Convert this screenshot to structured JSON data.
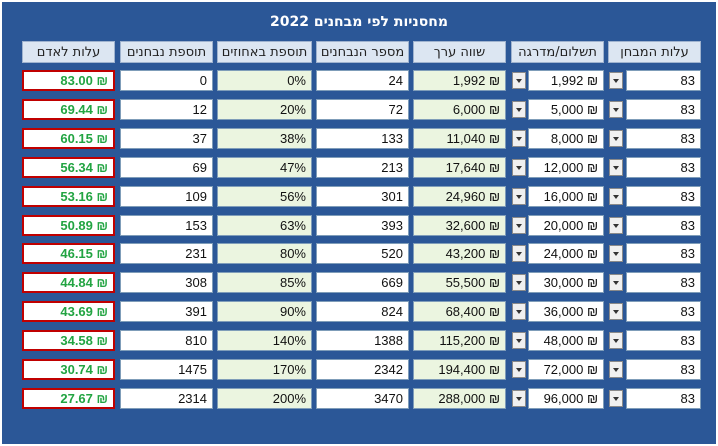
{
  "title": "מחסניות לפי מבחנים 2022",
  "headers": {
    "cost_per_person": "עלות לאדם",
    "examinee_bonus": "תוספת נבחנים",
    "percent_bonus": "תוספת באחוזים",
    "num_examinees": "מספר הנבחנים",
    "value_worth": "שווה ערך",
    "payment_level": "תשלום/מדרגה",
    "exam_cost": "עלות המבחן"
  },
  "rows": [
    {
      "cost": "83.00 ₪",
      "exb": "0",
      "pct": "0%",
      "num": "24",
      "val": "1,992 ₪",
      "pay": "1,992 ₪",
      "exam": "83"
    },
    {
      "cost": "69.44 ₪",
      "exb": "12",
      "pct": "20%",
      "num": "72",
      "val": "6,000 ₪",
      "pay": "5,000 ₪",
      "exam": "83"
    },
    {
      "cost": "60.15 ₪",
      "exb": "37",
      "pct": "38%",
      "num": "133",
      "val": "11,040 ₪",
      "pay": "8,000 ₪",
      "exam": "83"
    },
    {
      "cost": "56.34 ₪",
      "exb": "69",
      "pct": "47%",
      "num": "213",
      "val": "17,640 ₪",
      "pay": "12,000 ₪",
      "exam": "83"
    },
    {
      "cost": "53.16 ₪",
      "exb": "109",
      "pct": "56%",
      "num": "301",
      "val": "24,960 ₪",
      "pay": "16,000 ₪",
      "exam": "83"
    },
    {
      "cost": "50.89 ₪",
      "exb": "153",
      "pct": "63%",
      "num": "393",
      "val": "32,600 ₪",
      "pay": "20,000 ₪",
      "exam": "83"
    },
    {
      "cost": "46.15 ₪",
      "exb": "231",
      "pct": "80%",
      "num": "520",
      "val": "43,200 ₪",
      "pay": "24,000 ₪",
      "exam": "83"
    },
    {
      "cost": "44.84 ₪",
      "exb": "308",
      "pct": "85%",
      "num": "669",
      "val": "55,500 ₪",
      "pay": "30,000 ₪",
      "exam": "83"
    },
    {
      "cost": "43.69 ₪",
      "exb": "391",
      "pct": "90%",
      "num": "824",
      "val": "68,400 ₪",
      "pay": "36,000 ₪",
      "exam": "83"
    },
    {
      "cost": "34.58 ₪",
      "exb": "810",
      "pct": "140%",
      "num": "1388",
      "val": "115,200 ₪",
      "pay": "48,000 ₪",
      "exam": "83"
    },
    {
      "cost": "30.74 ₪",
      "exb": "1475",
      "pct": "170%",
      "num": "2342",
      "val": "194,400 ₪",
      "pay": "72,000 ₪",
      "exam": "83"
    },
    {
      "cost": "27.67 ₪",
      "exb": "2314",
      "pct": "200%",
      "num": "3470",
      "val": "288,000 ₪",
      "pay": "96,000 ₪",
      "exam": "83"
    }
  ],
  "colors": {
    "background": "#2b5797",
    "header": "#dce6f2",
    "highlight_border": "#c00000",
    "cost_text": "#22a442",
    "value_fill": "#ebf5e0"
  },
  "icons": {
    "dropdown": "chevron-down-icon"
  }
}
